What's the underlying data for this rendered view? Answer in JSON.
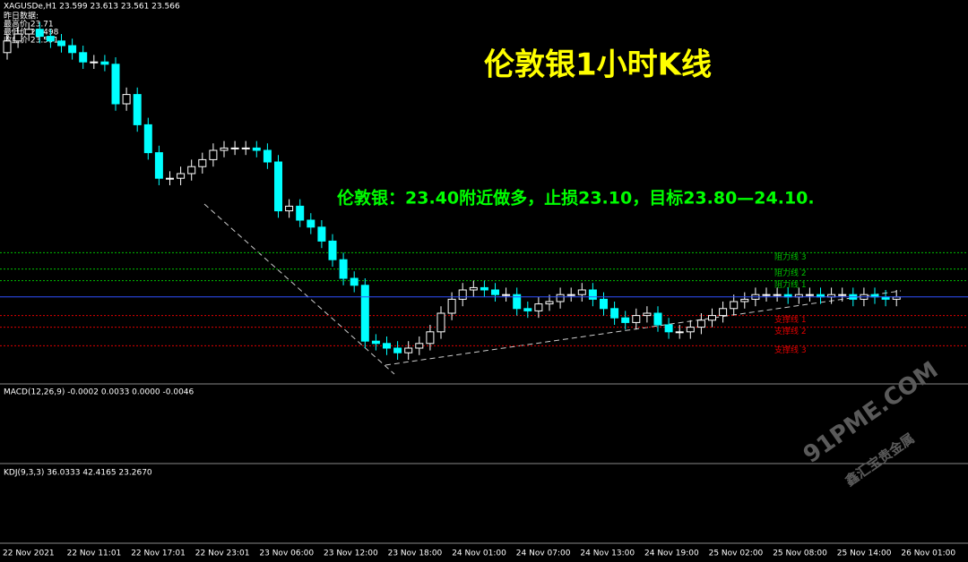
{
  "chart_data": {
    "type": "candlestick",
    "header": "XAGUSDe,H1  23.599 23.613 23.561 23.566",
    "info": [
      "昨日数据:",
      "最高价 23.71",
      "最低价 23.498",
      "收盘价 23.591"
    ],
    "title": "伦敦银1小时K线",
    "annotation": "伦敦银：23.40附近做多，止损23.10，目标23.80—24.10.",
    "macd_header": "MACD(12,26,9) -0.0002 0.0033 0.0000 -0.0046",
    "kdj_header": "KDJ(9,3,3) 36.0333 42.4165 23.2670",
    "watermark": [
      "91PME.COM",
      "鑫汇宝贵金属"
    ],
    "up_color": "#ffffff",
    "down_color": "#00ffff",
    "ylim": [
      23.2,
      24.8
    ],
    "levels": [
      {
        "name": "阻力线 3",
        "value": 23.76,
        "color": "#00c000"
      },
      {
        "name": "阻力线 2",
        "value": 23.69,
        "color": "#00c000"
      },
      {
        "name": "阻力线 1",
        "value": 23.64,
        "color": "#00c000"
      },
      {
        "name": "支撑线 1",
        "value": 23.49,
        "color": "#e00000"
      },
      {
        "name": "支撑线 2",
        "value": 23.44,
        "color": "#e00000"
      },
      {
        "name": "支撑线 3",
        "value": 23.36,
        "color": "#e00000"
      }
    ],
    "x_labels": [
      "22 Nov 2021",
      "22 Nov 11:01",
      "22 Nov 17:01",
      "22 Nov 23:01",
      "23 Nov 06:00",
      "23 Nov 12:00",
      "23 Nov 18:00",
      "24 Nov 01:00",
      "24 Nov 07:00",
      "24 Nov 13:00",
      "24 Nov 19:00",
      "25 Nov 02:00",
      "25 Nov 08:00",
      "25 Nov 14:00",
      "26 Nov 01:00"
    ],
    "candles": [
      [
        24.62,
        24.7,
        24.59,
        24.67
      ],
      [
        24.67,
        24.73,
        24.64,
        24.7
      ],
      [
        24.7,
        24.75,
        24.67,
        24.72
      ],
      [
        24.72,
        24.75,
        24.66,
        24.69
      ],
      [
        24.69,
        24.72,
        24.64,
        24.67
      ],
      [
        24.67,
        24.7,
        24.62,
        24.65
      ],
      [
        24.65,
        24.68,
        24.59,
        24.62
      ],
      [
        24.62,
        24.65,
        24.55,
        24.58
      ],
      [
        24.58,
        24.61,
        24.55,
        24.58
      ],
      [
        24.58,
        24.61,
        24.54,
        24.57
      ],
      [
        24.57,
        24.6,
        24.37,
        24.4
      ],
      [
        24.4,
        24.47,
        24.37,
        24.44
      ],
      [
        24.44,
        24.47,
        24.28,
        24.31
      ],
      [
        24.31,
        24.34,
        24.16,
        24.19
      ],
      [
        24.19,
        24.22,
        24.05,
        24.08
      ],
      [
        24.08,
        24.11,
        24.05,
        24.08
      ],
      [
        24.08,
        24.13,
        24.05,
        24.1
      ],
      [
        24.1,
        24.16,
        24.07,
        24.13
      ],
      [
        24.13,
        24.19,
        24.1,
        24.16
      ],
      [
        24.16,
        24.23,
        24.13,
        24.2
      ],
      [
        24.2,
        24.24,
        24.17,
        24.21
      ],
      [
        24.21,
        24.24,
        24.18,
        24.21
      ],
      [
        24.21,
        24.24,
        24.18,
        24.21
      ],
      [
        24.21,
        24.24,
        24.17,
        24.2
      ],
      [
        24.2,
        24.23,
        24.12,
        24.15
      ],
      [
        24.15,
        24.18,
        23.91,
        23.94
      ],
      [
        23.94,
        23.99,
        23.91,
        23.96
      ],
      [
        23.96,
        23.99,
        23.87,
        23.9
      ],
      [
        23.9,
        23.93,
        23.84,
        23.87
      ],
      [
        23.87,
        23.9,
        23.78,
        23.81
      ],
      [
        23.81,
        23.84,
        23.7,
        23.73
      ],
      [
        23.73,
        23.76,
        23.62,
        23.65
      ],
      [
        23.65,
        23.68,
        23.59,
        23.62
      ],
      [
        23.62,
        23.65,
        23.35,
        23.38
      ],
      [
        23.38,
        23.41,
        23.34,
        23.37
      ],
      [
        23.37,
        23.4,
        23.32,
        23.35
      ],
      [
        23.35,
        23.38,
        23.3,
        23.33
      ],
      [
        23.33,
        23.38,
        23.3,
        23.35
      ],
      [
        23.35,
        23.4,
        23.32,
        23.37
      ],
      [
        23.37,
        23.45,
        23.34,
        23.42
      ],
      [
        23.42,
        23.53,
        23.39,
        23.5
      ],
      [
        23.5,
        23.59,
        23.47,
        23.56
      ],
      [
        23.56,
        23.63,
        23.53,
        23.6
      ],
      [
        23.6,
        23.64,
        23.57,
        23.61
      ],
      [
        23.61,
        23.64,
        23.57,
        23.6
      ],
      [
        23.6,
        23.63,
        23.55,
        23.58
      ],
      [
        23.58,
        23.61,
        23.55,
        23.58
      ],
      [
        23.58,
        23.61,
        23.49,
        23.52
      ],
      [
        23.52,
        23.55,
        23.48,
        23.51
      ],
      [
        23.51,
        23.57,
        23.48,
        23.54
      ],
      [
        23.54,
        23.58,
        23.51,
        23.55
      ],
      [
        23.55,
        23.61,
        23.52,
        23.58
      ],
      [
        23.58,
        23.61,
        23.55,
        23.58
      ],
      [
        23.58,
        23.63,
        23.55,
        23.6
      ],
      [
        23.6,
        23.63,
        23.53,
        23.56
      ],
      [
        23.56,
        23.59,
        23.49,
        23.52
      ],
      [
        23.52,
        23.55,
        23.45,
        23.48
      ],
      [
        23.48,
        23.51,
        23.43,
        23.46
      ],
      [
        23.46,
        23.52,
        23.43,
        23.49
      ],
      [
        23.49,
        23.53,
        23.46,
        23.5
      ],
      [
        23.5,
        23.53,
        23.42,
        23.45
      ],
      [
        23.45,
        23.48,
        23.39,
        23.42
      ],
      [
        23.42,
        23.45,
        23.39,
        23.42
      ],
      [
        23.42,
        23.47,
        23.39,
        23.44
      ],
      [
        23.44,
        23.5,
        23.41,
        23.47
      ],
      [
        23.47,
        23.52,
        23.44,
        23.49
      ],
      [
        23.49,
        23.55,
        23.46,
        23.52
      ],
      [
        23.52,
        23.58,
        23.49,
        23.55
      ],
      [
        23.55,
        23.59,
        23.52,
        23.56
      ],
      [
        23.56,
        23.61,
        23.53,
        23.58
      ],
      [
        23.58,
        23.61,
        23.55,
        23.58
      ],
      [
        23.58,
        23.61,
        23.55,
        23.58
      ],
      [
        23.58,
        23.61,
        23.54,
        23.57
      ],
      [
        23.57,
        23.61,
        23.54,
        23.58
      ],
      [
        23.58,
        23.61,
        23.55,
        23.58
      ],
      [
        23.58,
        23.61,
        23.54,
        23.57
      ],
      [
        23.57,
        23.61,
        23.54,
        23.58
      ],
      [
        23.58,
        23.61,
        23.55,
        23.58
      ],
      [
        23.58,
        23.61,
        23.53,
        23.56
      ],
      [
        23.56,
        23.61,
        23.53,
        23.58
      ],
      [
        23.58,
        23.61,
        23.54,
        23.57
      ],
      [
        23.57,
        23.6,
        23.53,
        23.56
      ],
      [
        23.56,
        23.6,
        23.53,
        23.57
      ]
    ]
  }
}
